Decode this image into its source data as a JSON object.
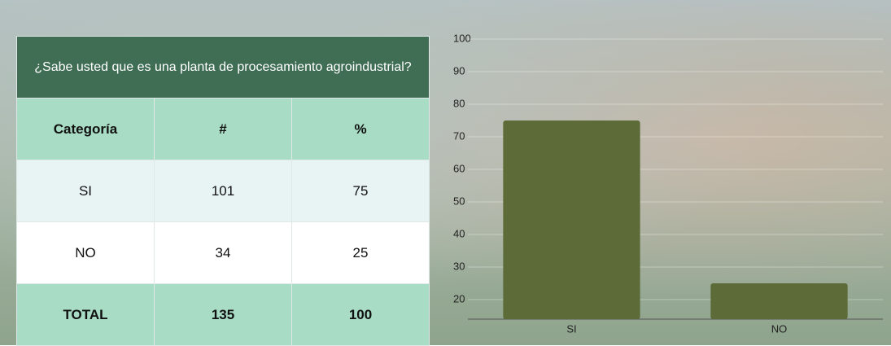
{
  "table": {
    "title": "¿Sabe usted que es una planta de procesamiento agroindustrial?",
    "header": [
      "Categoría",
      "#",
      "%"
    ],
    "rows": [
      [
        "SI",
        "101",
        "75"
      ],
      [
        "NO",
        "34",
        "25"
      ]
    ],
    "total": [
      "TOTAL",
      "135",
      "100"
    ]
  },
  "chart_data": {
    "type": "bar",
    "categories": [
      "SI",
      "NO"
    ],
    "values": [
      75,
      25
    ],
    "color": "#5c6b38",
    "ylim": [
      14,
      100
    ],
    "yticks": [
      20,
      30,
      40,
      50,
      60,
      70,
      80,
      90,
      100
    ],
    "grid": true
  }
}
